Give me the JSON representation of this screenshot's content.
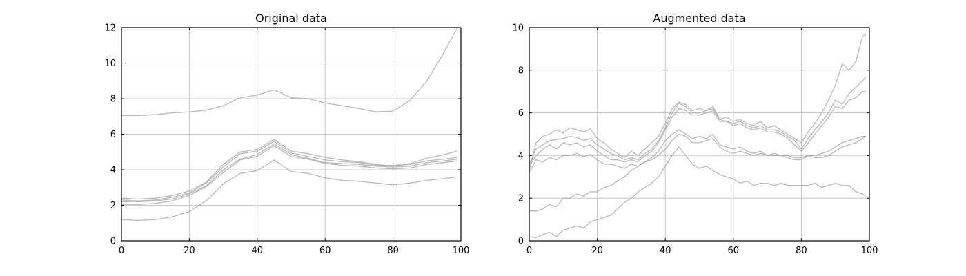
{
  "chart_data": [
    {
      "type": "line",
      "title": "Original data",
      "xlabel": "",
      "ylabel": "",
      "xlim": [
        0,
        100
      ],
      "ylim": [
        0,
        12
      ],
      "xticks": [
        "0",
        "20",
        "40",
        "60",
        "80",
        "100"
      ],
      "yticks": [
        "0",
        "2",
        "4",
        "6",
        "8",
        "10",
        "12"
      ],
      "grid": true,
      "line_color": "#a6a6a6",
      "series": [
        {
          "x": [
            0,
            5,
            10,
            15,
            20,
            25,
            30,
            35,
            40,
            45,
            50,
            55,
            60,
            65,
            70,
            75,
            80,
            85,
            90,
            95,
            99
          ],
          "values": [
            7.05,
            7.05,
            7.1,
            7.2,
            7.25,
            7.35,
            7.6,
            8.05,
            8.2,
            8.5,
            8.05,
            8.0,
            7.75,
            7.6,
            7.45,
            7.25,
            7.3,
            7.9,
            9.0,
            10.6,
            12.0
          ]
        },
        {
          "x": [
            0,
            5,
            10,
            15,
            20,
            25,
            30,
            35,
            40,
            45,
            50,
            55,
            60,
            65,
            70,
            75,
            80,
            85,
            90,
            95,
            99
          ],
          "values": [
            2.4,
            2.35,
            2.4,
            2.55,
            2.8,
            3.3,
            4.3,
            5.0,
            5.15,
            5.7,
            5.05,
            4.9,
            4.7,
            4.55,
            4.45,
            4.3,
            4.2,
            4.35,
            4.65,
            4.85,
            5.05
          ]
        },
        {
          "x": [
            0,
            5,
            10,
            15,
            20,
            25,
            30,
            35,
            40,
            45,
            50,
            55,
            60,
            65,
            70,
            75,
            80,
            85,
            90,
            95,
            99
          ],
          "values": [
            2.3,
            2.25,
            2.3,
            2.45,
            2.7,
            3.25,
            4.15,
            4.9,
            5.05,
            5.6,
            4.95,
            4.75,
            4.55,
            4.45,
            4.4,
            4.25,
            4.25,
            4.3,
            4.5,
            4.6,
            4.7
          ]
        },
        {
          "x": [
            0,
            5,
            10,
            15,
            20,
            25,
            30,
            35,
            40,
            45,
            50,
            55,
            60,
            65,
            70,
            75,
            80,
            85,
            90,
            95,
            99
          ],
          "values": [
            2.2,
            2.2,
            2.25,
            2.35,
            2.65,
            3.1,
            4.0,
            4.6,
            4.85,
            5.45,
            4.85,
            4.65,
            4.4,
            4.35,
            4.3,
            4.2,
            4.15,
            4.2,
            4.4,
            4.5,
            4.6
          ]
        },
        {
          "x": [
            0,
            5,
            10,
            15,
            20,
            25,
            30,
            35,
            40,
            45,
            50,
            55,
            60,
            65,
            70,
            75,
            80,
            85,
            90,
            95,
            99
          ],
          "values": [
            2.05,
            2.05,
            2.1,
            2.25,
            2.55,
            3.05,
            3.85,
            4.55,
            4.75,
            5.35,
            4.75,
            4.6,
            4.35,
            4.25,
            4.2,
            4.1,
            4.05,
            4.1,
            4.3,
            4.4,
            4.5
          ]
        },
        {
          "x": [
            0,
            5,
            10,
            15,
            20,
            25,
            30,
            35,
            40,
            45,
            50,
            55,
            60,
            65,
            70,
            75,
            80,
            85,
            90,
            95,
            99
          ],
          "values": [
            1.2,
            1.15,
            1.2,
            1.35,
            1.65,
            2.25,
            3.2,
            3.8,
            3.95,
            4.55,
            3.9,
            3.8,
            3.55,
            3.4,
            3.35,
            3.25,
            3.15,
            3.25,
            3.4,
            3.5,
            3.6
          ]
        }
      ]
    },
    {
      "type": "line",
      "title": "Augmented data",
      "xlabel": "",
      "ylabel": "",
      "xlim": [
        0,
        100
      ],
      "ylim": [
        0,
        10
      ],
      "xticks": [
        "0",
        "20",
        "40",
        "60",
        "80",
        "100"
      ],
      "yticks": [
        "0",
        "2",
        "4",
        "6",
        "8",
        "10"
      ],
      "grid": true,
      "line_color": "#a6a6a6",
      "series": [
        {
          "x": [
            0,
            2,
            4,
            6,
            8,
            10,
            12,
            14,
            16,
            18,
            20,
            22,
            24,
            26,
            28,
            30,
            32,
            34,
            36,
            38,
            40,
            42,
            44,
            46,
            48,
            50,
            52,
            54,
            56,
            58,
            60,
            62,
            64,
            66,
            68,
            70,
            72,
            74,
            76,
            78,
            80,
            82,
            84,
            86,
            88,
            90,
            92,
            94,
            96,
            98,
            99
          ],
          "values": [
            3.3,
            4.6,
            4.9,
            5.0,
            5.2,
            5.05,
            5.3,
            5.2,
            5.1,
            5.25,
            4.8,
            4.6,
            4.3,
            4.1,
            3.9,
            4.2,
            4.0,
            4.3,
            4.6,
            4.9,
            5.5,
            6.2,
            6.5,
            6.4,
            6.1,
            6.2,
            6.1,
            6.3,
            5.7,
            5.8,
            5.6,
            5.7,
            5.5,
            5.4,
            5.6,
            5.3,
            5.4,
            5.2,
            5.0,
            4.8,
            4.6,
            5.1,
            5.5,
            6.0,
            6.6,
            7.3,
            8.3,
            8.0,
            8.4,
            9.6,
            9.7
          ]
        },
        {
          "x": [
            0,
            2,
            4,
            6,
            8,
            10,
            12,
            14,
            16,
            18,
            20,
            22,
            24,
            26,
            28,
            30,
            32,
            34,
            36,
            38,
            40,
            42,
            44,
            46,
            48,
            50,
            52,
            54,
            56,
            58,
            60,
            62,
            64,
            66,
            68,
            70,
            72,
            74,
            76,
            78,
            80,
            82,
            84,
            86,
            88,
            90,
            92,
            94,
            96,
            98,
            99
          ],
          "values": [
            3.6,
            4.3,
            4.5,
            4.7,
            4.75,
            4.8,
            4.9,
            4.85,
            4.7,
            4.8,
            4.5,
            4.3,
            4.1,
            4.0,
            3.8,
            3.9,
            3.8,
            4.1,
            4.3,
            4.7,
            5.3,
            6.0,
            6.45,
            6.3,
            6.0,
            6.0,
            6.1,
            6.2,
            5.7,
            5.6,
            5.5,
            5.6,
            5.4,
            5.3,
            5.4,
            5.2,
            5.2,
            5.1,
            4.9,
            4.7,
            4.3,
            4.8,
            5.2,
            5.6,
            6.0,
            6.6,
            6.4,
            6.9,
            7.2,
            7.5,
            7.7
          ]
        },
        {
          "x": [
            0,
            2,
            4,
            6,
            8,
            10,
            12,
            14,
            16,
            18,
            20,
            22,
            24,
            26,
            28,
            30,
            32,
            34,
            36,
            38,
            40,
            42,
            44,
            46,
            48,
            50,
            52,
            54,
            56,
            58,
            60,
            62,
            64,
            66,
            68,
            70,
            72,
            74,
            76,
            78,
            80,
            82,
            84,
            86,
            88,
            90,
            92,
            94,
            96,
            98,
            99
          ],
          "values": [
            3.5,
            4.0,
            4.3,
            4.5,
            4.3,
            4.6,
            4.5,
            4.6,
            4.4,
            4.5,
            4.2,
            4.0,
            3.8,
            3.8,
            3.7,
            3.8,
            3.7,
            4.0,
            4.2,
            4.6,
            5.2,
            5.8,
            6.2,
            6.1,
            5.9,
            5.9,
            6.0,
            6.1,
            5.6,
            5.6,
            5.4,
            5.5,
            5.3,
            5.2,
            5.3,
            5.1,
            5.1,
            5.0,
            4.8,
            4.5,
            4.2,
            4.6,
            5.0,
            5.4,
            5.8,
            6.3,
            6.2,
            6.6,
            6.7,
            7.0,
            7.0
          ]
        },
        {
          "x": [
            0,
            2,
            4,
            6,
            8,
            10,
            12,
            14,
            16,
            18,
            20,
            22,
            24,
            26,
            28,
            30,
            32,
            34,
            36,
            38,
            40,
            42,
            44,
            46,
            48,
            50,
            52,
            54,
            56,
            58,
            60,
            62,
            64,
            66,
            68,
            70,
            72,
            74,
            76,
            78,
            80,
            82,
            84,
            86,
            88,
            90,
            92,
            94,
            96,
            98,
            99
          ],
          "values": [
            3.2,
            3.8,
            3.7,
            3.9,
            3.8,
            4.0,
            4.0,
            4.1,
            3.95,
            4.05,
            3.8,
            3.6,
            3.6,
            3.5,
            3.4,
            3.6,
            3.5,
            3.7,
            3.9,
            4.2,
            4.7,
            5.0,
            5.2,
            5.0,
            4.8,
            4.9,
            4.8,
            5.0,
            4.5,
            4.4,
            4.3,
            4.4,
            4.2,
            4.1,
            4.2,
            4.0,
            4.1,
            4.0,
            3.9,
            3.8,
            3.8,
            4.0,
            4.0,
            4.1,
            4.2,
            4.4,
            4.6,
            4.7,
            4.8,
            4.9,
            4.9
          ]
        },
        {
          "x": [
            0,
            2,
            4,
            6,
            8,
            10,
            12,
            14,
            16,
            18,
            20,
            22,
            24,
            26,
            28,
            30,
            32,
            34,
            36,
            38,
            40,
            42,
            44,
            46,
            48,
            50,
            52,
            54,
            56,
            58,
            60,
            62,
            64,
            66,
            68,
            70,
            72,
            74,
            76,
            78,
            80,
            82,
            84,
            86,
            88,
            90,
            92,
            94,
            96,
            98,
            99
          ],
          "values": [
            1.4,
            1.4,
            1.5,
            1.7,
            1.6,
            2.0,
            2.0,
            2.2,
            2.1,
            2.3,
            2.3,
            2.5,
            2.6,
            2.8,
            3.0,
            3.3,
            3.5,
            3.7,
            3.8,
            4.0,
            4.3,
            4.7,
            5.0,
            4.9,
            4.6,
            4.6,
            4.7,
            4.8,
            4.4,
            4.2,
            4.1,
            4.2,
            4.1,
            4.0,
            4.1,
            4.0,
            4.0,
            4.0,
            4.0,
            3.9,
            3.9,
            4.0,
            3.9,
            3.9,
            4.0,
            4.2,
            4.4,
            4.5,
            4.6,
            4.8,
            4.9
          ]
        },
        {
          "x": [
            0,
            2,
            4,
            6,
            8,
            10,
            12,
            14,
            16,
            18,
            20,
            22,
            24,
            26,
            28,
            30,
            32,
            34,
            36,
            38,
            40,
            42,
            44,
            46,
            48,
            50,
            52,
            54,
            56,
            58,
            60,
            62,
            64,
            66,
            68,
            70,
            72,
            74,
            76,
            78,
            80,
            82,
            84,
            86,
            88,
            90,
            92,
            94,
            96,
            98,
            99
          ],
          "values": [
            0.2,
            0.15,
            0.3,
            0.4,
            0.2,
            0.5,
            0.6,
            0.7,
            0.6,
            0.9,
            1.0,
            1.1,
            1.2,
            1.5,
            1.8,
            2.0,
            2.3,
            2.5,
            2.7,
            3.0,
            3.5,
            4.0,
            4.4,
            4.0,
            3.6,
            3.4,
            3.5,
            3.3,
            3.1,
            3.0,
            2.9,
            2.7,
            2.8,
            2.6,
            2.7,
            2.7,
            2.6,
            2.7,
            2.6,
            2.6,
            2.6,
            2.6,
            2.7,
            2.5,
            2.6,
            2.7,
            2.6,
            2.6,
            2.3,
            2.2,
            2.1
          ]
        }
      ]
    }
  ]
}
